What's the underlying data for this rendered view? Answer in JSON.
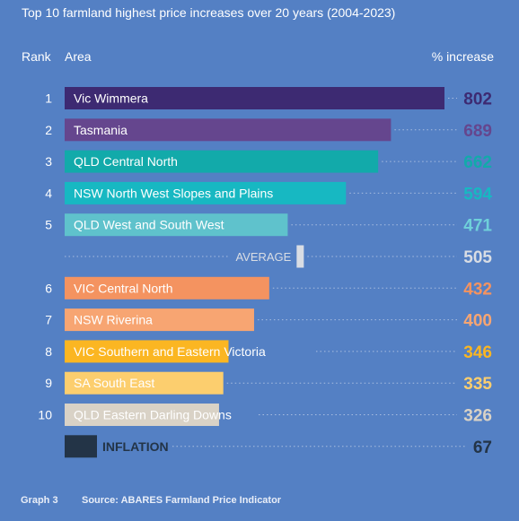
{
  "chart_data": {
    "type": "bar",
    "orientation": "horizontal",
    "title": "Top 10 farmland highest price increases over 20 years (2004-2023)",
    "column_headers": {
      "rank": "Rank",
      "area": "Area",
      "value": "% increase"
    },
    "xlim": [
      0,
      802
    ],
    "rows": [
      {
        "rank": "1",
        "label": "Vic Wimmera",
        "value": 802,
        "display": "802",
        "bar_color": "#3d2a72",
        "value_color": "#3d2a72",
        "label_color": "#ffffff",
        "kind": "bar"
      },
      {
        "rank": "2",
        "label": "Tasmania",
        "value": 689,
        "display": "689",
        "bar_color": "#65468e",
        "value_color": "#65468e",
        "label_color": "#ffffff",
        "kind": "bar"
      },
      {
        "rank": "3",
        "label": "QLD Central North",
        "value": 662,
        "display": "662",
        "bar_color": "#12aaaa",
        "value_color": "#12aaaa",
        "label_color": "#ffffff",
        "kind": "bar"
      },
      {
        "rank": "4",
        "label": "NSW North West Slopes and Plains",
        "value": 594,
        "display": "594",
        "bar_color": "#17b8c2",
        "value_color": "#17b8c2",
        "label_color": "#ffffff",
        "kind": "bar"
      },
      {
        "rank": "5",
        "label": "QLD West and South West",
        "value": 471,
        "display": "471",
        "bar_color": "#5fc2cc",
        "value_color": "#6fd0da",
        "label_color": "#ffffff",
        "kind": "bar"
      },
      {
        "rank": "",
        "label": "AVERAGE",
        "value": 505,
        "display": "505",
        "bar_color": "#d9dde4",
        "value_color": "#d9dde4",
        "label_color": "#d9dde4",
        "kind": "marker"
      },
      {
        "rank": "6",
        "label": "VIC Central North",
        "value": 432,
        "display": "432",
        "bar_color": "#f49360",
        "value_color": "#f49360",
        "label_color": "#ffffff",
        "kind": "bar"
      },
      {
        "rank": "7",
        "label": "NSW Riverina",
        "value": 400,
        "display": "400",
        "bar_color": "#f7a572",
        "value_color": "#f7a572",
        "label_color": "#ffffff",
        "kind": "bar"
      },
      {
        "rank": "8",
        "label": "VIC Southern and Eastern Victoria",
        "value": 346,
        "display": "346",
        "bar_color": "#fbb622",
        "value_color": "#fbb622",
        "label_color": "#ffffff",
        "kind": "bar"
      },
      {
        "rank": "9",
        "label": "SA South East",
        "value": 335,
        "display": "335",
        "bar_color": "#fcce6e",
        "value_color": "#fcce6e",
        "label_color": "#ffffff",
        "kind": "bar"
      },
      {
        "rank": "10",
        "label": "QLD Eastern Darling Downs",
        "value": 326,
        "display": "326",
        "bar_color": "#d9d2c6",
        "value_color": "#d9d2c6",
        "label_color": "#ffffff",
        "kind": "bar"
      },
      {
        "rank": "",
        "label": "INFLATION",
        "value": 67,
        "display": "67",
        "bar_color": "#233447",
        "value_color": "#233447",
        "label_color": "#233447",
        "kind": "bar"
      }
    ],
    "leader_color": "#a9bde0",
    "grid": false,
    "legend": "none"
  },
  "footer": {
    "graph_label": "Graph 3",
    "source": "Source: ABARES Farmland Price Indicator"
  }
}
